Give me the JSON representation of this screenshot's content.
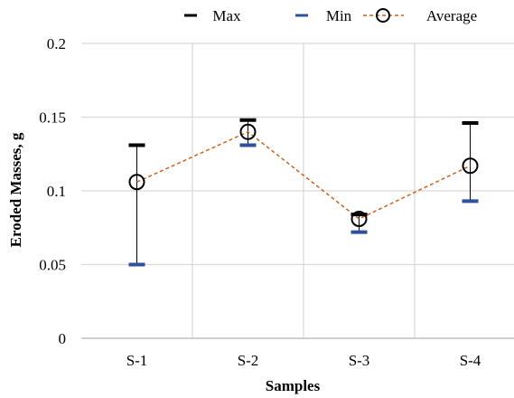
{
  "chart_data": {
    "type": "line",
    "categories": [
      "S-1",
      "S-2",
      "S-3",
      "S-4"
    ],
    "series": [
      {
        "name": "Max",
        "values": [
          0.131,
          0.148,
          0.084,
          0.146
        ],
        "color": "#000000",
        "marker": "dash"
      },
      {
        "name": "Min",
        "values": [
          0.05,
          0.131,
          0.072,
          0.093
        ],
        "color": "#2f4f9f",
        "marker": "dash"
      },
      {
        "name": "Average",
        "values": [
          0.106,
          0.14,
          0.081,
          0.117
        ],
        "color": "#d45f1e",
        "marker": "circle",
        "line": "dashed"
      }
    ],
    "xlabel": "Samples",
    "ylabel": "Eroded Masses, g",
    "ylim": [
      0,
      0.2
    ],
    "yticks": [
      0,
      0.05,
      0.1,
      0.15,
      0.2
    ],
    "ytick_labels": [
      "0",
      "0.05",
      "0.1",
      "0.15",
      "0.2"
    ],
    "grid": true,
    "legend_position": "top",
    "error_bar_color": "#000000"
  }
}
